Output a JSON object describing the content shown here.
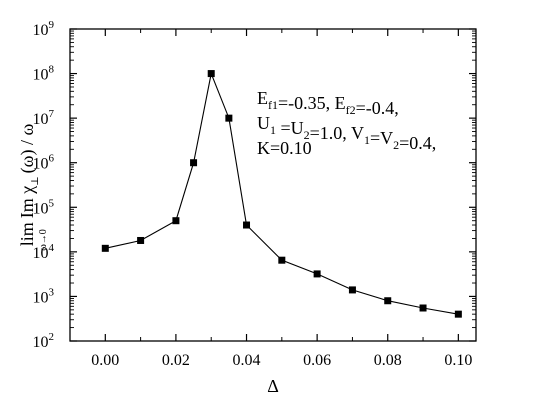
{
  "chart_data": {
    "type": "line",
    "xlabel": "Δ",
    "ylabel": {
      "prefix": "lim",
      "sub": "ω→0",
      "main": "Im χ",
      "main_sub": "⊥",
      "suffix": "(ω) / ω"
    },
    "y_scale": "log",
    "xlim": [
      -0.01,
      0.105
    ],
    "ylim": [
      100,
      1000000000
    ],
    "x_ticks": [
      0.0,
      0.02,
      0.04,
      0.06,
      0.08,
      0.1
    ],
    "x_tick_labels": [
      "0.00",
      "0.02",
      "0.04",
      "0.06",
      "0.08",
      "0.10"
    ],
    "y_tick_exponents": [
      2,
      3,
      4,
      5,
      6,
      7,
      8,
      9
    ],
    "y_tick_base": "10",
    "grid": false,
    "series": [
      {
        "marker": "square",
        "x": [
          0.0,
          0.01,
          0.02,
          0.025,
          0.03,
          0.035,
          0.04,
          0.05,
          0.06,
          0.07,
          0.08,
          0.09,
          0.1
        ],
        "y": [
          12000,
          18000,
          50000,
          1000000,
          100000000,
          10000000,
          40000,
          6500,
          3200,
          1400,
          800,
          550,
          400
        ]
      }
    ],
    "annotation": [
      {
        "parts": [
          [
            "E",
            ""
          ],
          [
            "f1",
            "sub"
          ],
          [
            "=-0.35, E",
            ""
          ],
          [
            "f2",
            "sub"
          ],
          [
            "=-0.4,",
            ""
          ]
        ]
      },
      {
        "parts": [
          [
            "U",
            ""
          ],
          [
            "1",
            "sub"
          ],
          [
            " =U",
            ""
          ],
          [
            "2",
            "sub"
          ],
          [
            "=1.0, V",
            ""
          ],
          [
            "1",
            "sub"
          ],
          [
            "=V",
            ""
          ],
          [
            "2",
            "sub"
          ],
          [
            "=0.4,",
            ""
          ]
        ]
      },
      {
        "parts": [
          [
            "K=0.10",
            ""
          ]
        ]
      }
    ],
    "colors": {
      "line": "#000000",
      "marker": "#000000",
      "axes": "#000000"
    }
  }
}
